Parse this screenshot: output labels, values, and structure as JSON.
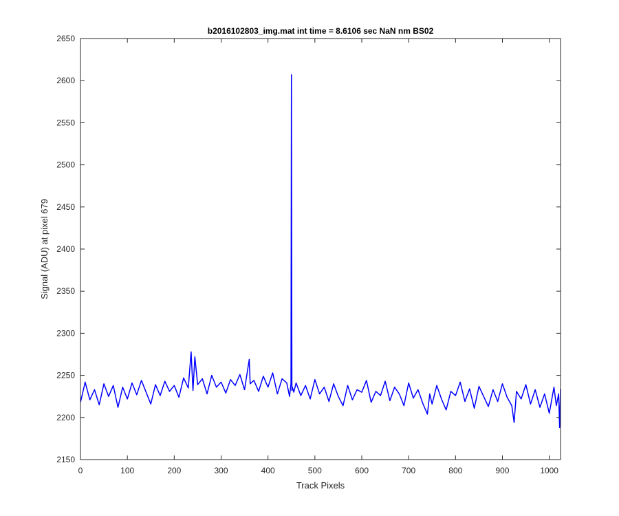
{
  "chart_data": {
    "type": "line",
    "title": "b2016102803_img.mat int time = 8.6106 sec  NaN nm BS02",
    "xlabel": "Track Pixels",
    "ylabel": "Signal (ADU) at pixel 679",
    "xlim": [
      0,
      1024
    ],
    "ylim": [
      2150,
      2650
    ],
    "xticks": [
      0,
      100,
      200,
      300,
      400,
      500,
      600,
      700,
      800,
      900,
      1000
    ],
    "yticks": [
      2150,
      2200,
      2250,
      2300,
      2350,
      2400,
      2450,
      2500,
      2550,
      2600,
      2650
    ],
    "grid": false,
    "series_color": "#0000ff",
    "series": [
      {
        "x": [
          0,
          10,
          20,
          30,
          40,
          50,
          60,
          70,
          80,
          90,
          100,
          110,
          120,
          130,
          140,
          150,
          160,
          170,
          180,
          190,
          200,
          210,
          220,
          230,
          236,
          240,
          244,
          250,
          260,
          270,
          280,
          290,
          300,
          310,
          320,
          330,
          340,
          350,
          360,
          362,
          370,
          380,
          390,
          400,
          410,
          420,
          430,
          440,
          446,
          449,
          450,
          451,
          452,
          455,
          460,
          470,
          480,
          490,
          500,
          510,
          520,
          530,
          540,
          550,
          560,
          570,
          580,
          590,
          600,
          610,
          620,
          630,
          640,
          650,
          660,
          670,
          680,
          690,
          700,
          710,
          720,
          730,
          740,
          745,
          750,
          760,
          770,
          780,
          790,
          800,
          810,
          820,
          830,
          840,
          850,
          860,
          870,
          880,
          890,
          900,
          910,
          920,
          925,
          930,
          940,
          950,
          960,
          970,
          980,
          990,
          1000,
          1010,
          1015,
          1020,
          1022,
          1024
        ],
        "y": [
          2218,
          2242,
          2221,
          2233,
          2215,
          2240,
          2225,
          2238,
          2212,
          2236,
          2222,
          2241,
          2227,
          2244,
          2230,
          2216,
          2239,
          2226,
          2243,
          2231,
          2238,
          2224,
          2247,
          2235,
          2278,
          2232,
          2272,
          2239,
          2246,
          2228,
          2250,
          2236,
          2242,
          2229,
          2245,
          2238,
          2251,
          2233,
          2269,
          2240,
          2244,
          2231,
          2249,
          2236,
          2253,
          2228,
          2246,
          2241,
          2225,
          2240,
          2607,
          2232,
          2236,
          2230,
          2241,
          2226,
          2238,
          2222,
          2245,
          2228,
          2236,
          2219,
          2240,
          2225,
          2214,
          2238,
          2221,
          2233,
          2230,
          2244,
          2218,
          2231,
          2226,
          2243,
          2220,
          2236,
          2228,
          2214,
          2241,
          2223,
          2233,
          2217,
          2204,
          2228,
          2216,
          2238,
          2222,
          2209,
          2231,
          2226,
          2242,
          2219,
          2234,
          2211,
          2237,
          2225,
          2213,
          2233,
          2219,
          2240,
          2224,
          2214,
          2194,
          2231,
          2222,
          2239,
          2216,
          2233,
          2212,
          2228,
          2205,
          2236,
          2214,
          2228,
          2188,
          2234
        ]
      }
    ]
  }
}
